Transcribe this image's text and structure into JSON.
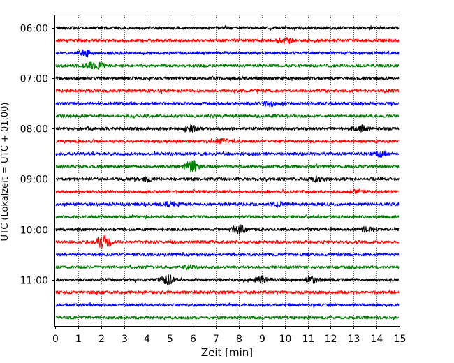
{
  "chart_data": {
    "type": "line",
    "title": "",
    "xlabel": "Zeit  [min]",
    "ylabel": "UTC (Lokalzeit = UTC + 01:00)",
    "xlim": [
      0,
      15
    ],
    "x_ticks": [
      "0",
      "1",
      "2",
      "3",
      "4",
      "5",
      "6",
      "7",
      "8",
      "9",
      "10",
      "11",
      "12",
      "13",
      "14",
      "15"
    ],
    "y_ticks": [
      "06:00",
      "07:00",
      "08:00",
      "09:00",
      "10:00",
      "11:00"
    ],
    "grid": {
      "x": "dotted",
      "y": "none"
    },
    "legend": "none",
    "colors": [
      "#000000",
      "#ff0000",
      "#0000ff",
      "#008000"
    ],
    "series": [
      {
        "start": "06:00",
        "color": "#000000",
        "events": []
      },
      {
        "start": "06:15",
        "color": "#ff0000",
        "events": [
          {
            "t": 10.0,
            "amp": 0.5
          }
        ]
      },
      {
        "start": "06:30",
        "color": "#0000ff",
        "events": [
          {
            "t": 1.3,
            "amp": 0.5
          }
        ]
      },
      {
        "start": "06:45",
        "color": "#008000",
        "events": [
          {
            "t": 1.5,
            "amp": 0.5
          },
          {
            "t": 1.9,
            "amp": 0.4
          }
        ]
      },
      {
        "start": "07:00",
        "color": "#000000",
        "events": []
      },
      {
        "start": "07:15",
        "color": "#ff0000",
        "events": []
      },
      {
        "start": "07:30",
        "color": "#0000ff",
        "events": [
          {
            "t": 9.3,
            "amp": 0.4
          }
        ]
      },
      {
        "start": "07:45",
        "color": "#008000",
        "events": []
      },
      {
        "start": "08:00",
        "color": "#000000",
        "events": [
          {
            "t": 5.9,
            "amp": 0.5
          },
          {
            "t": 13.3,
            "amp": 0.5
          }
        ]
      },
      {
        "start": "08:15",
        "color": "#ff0000",
        "events": [
          {
            "t": 7.3,
            "amp": 0.4
          }
        ]
      },
      {
        "start": "08:30",
        "color": "#0000ff",
        "events": [
          {
            "t": 14.2,
            "amp": 0.5
          }
        ]
      },
      {
        "start": "08:45",
        "color": "#008000",
        "events": [
          {
            "t": 6.0,
            "amp": 1.0
          }
        ]
      },
      {
        "start": "09:00",
        "color": "#000000",
        "events": [
          {
            "t": 4.1,
            "amp": 0.4
          },
          {
            "t": 11.4,
            "amp": 0.4
          }
        ]
      },
      {
        "start": "09:15",
        "color": "#ff0000",
        "events": [
          {
            "t": 13.1,
            "amp": 0.3
          }
        ]
      },
      {
        "start": "09:30",
        "color": "#0000ff",
        "events": [
          {
            "t": 5.0,
            "amp": 0.4
          },
          {
            "t": 9.7,
            "amp": 0.4
          }
        ]
      },
      {
        "start": "09:45",
        "color": "#008000",
        "events": []
      },
      {
        "start": "10:00",
        "color": "#000000",
        "events": [
          {
            "t": 8.0,
            "amp": 0.9
          },
          {
            "t": 13.6,
            "amp": 0.4
          }
        ]
      },
      {
        "start": "10:15",
        "color": "#ff0000",
        "events": [
          {
            "t": 2.1,
            "amp": 1.3
          }
        ]
      },
      {
        "start": "10:30",
        "color": "#0000ff",
        "events": []
      },
      {
        "start": "10:45",
        "color": "#008000",
        "events": [
          {
            "t": 5.8,
            "amp": 0.3
          }
        ]
      },
      {
        "start": "11:00",
        "color": "#000000",
        "events": [
          {
            "t": 4.9,
            "amp": 0.9
          },
          {
            "t": 9.0,
            "amp": 0.6
          },
          {
            "t": 11.2,
            "amp": 0.6
          }
        ]
      },
      {
        "start": "11:15",
        "color": "#ff0000",
        "events": []
      },
      {
        "start": "11:30",
        "color": "#0000ff",
        "events": []
      },
      {
        "start": "11:45",
        "color": "#008000",
        "events": []
      }
    ]
  }
}
